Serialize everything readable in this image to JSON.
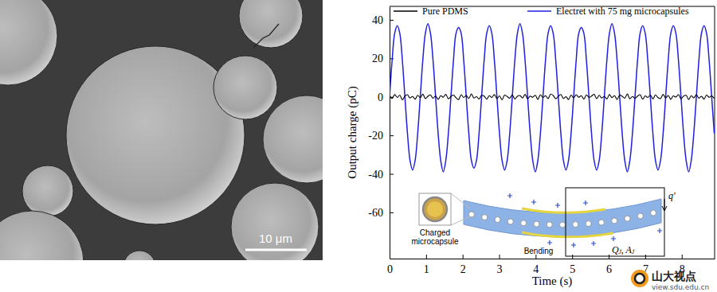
{
  "chart_data": {
    "type": "line",
    "xlabel": "Time (s)",
    "ylabel": "Output charge (pC)",
    "xlim": [
      0,
      8.9
    ],
    "xticks": [
      0,
      1,
      2,
      3,
      4,
      5,
      6,
      7,
      8
    ],
    "ylim": [
      -84,
      47
    ],
    "yticks": [
      -60,
      -40,
      -20,
      0,
      20,
      40
    ],
    "legend": "top",
    "x": [
      0,
      0.07,
      0.14,
      0.21,
      0.28,
      0.35,
      0.42,
      0.49,
      0.56,
      0.63,
      0.7,
      0.77,
      0.84,
      0.91,
      0.98,
      1.05,
      1.12,
      1.19,
      1.26,
      1.33,
      1.4,
      1.47,
      1.54,
      1.61,
      1.68,
      1.75,
      1.82,
      1.89,
      1.96,
      2.03,
      2.1,
      2.17,
      2.24,
      2.31,
      2.38,
      2.45,
      2.52,
      2.59,
      2.66,
      2.73,
      2.8,
      2.87,
      2.94,
      3.01,
      3.08,
      3.15,
      3.22,
      3.29,
      3.36,
      3.43,
      3.5,
      3.57,
      3.64,
      3.71,
      3.78,
      3.85,
      3.92,
      3.99,
      4.06,
      4.13,
      4.2,
      4.27,
      4.34,
      4.41,
      4.48,
      4.55,
      4.62,
      4.69,
      4.76,
      4.83,
      4.9,
      4.97,
      5.04,
      5.11,
      5.18,
      5.25,
      5.32,
      5.39,
      5.46,
      5.53,
      5.6,
      5.67,
      5.74,
      5.81,
      5.88,
      5.95,
      6.02,
      6.09,
      6.16,
      6.23,
      6.3,
      6.37,
      6.44,
      6.51,
      6.58,
      6.65,
      6.72,
      6.79,
      6.86,
      6.93,
      7.0,
      7.07,
      7.14,
      7.21,
      7.28,
      7.35,
      7.42,
      7.49,
      7.56,
      7.63,
      7.7,
      7.77,
      7.84,
      7.91,
      7.98,
      8.05,
      8.12,
      8.19,
      8.26,
      8.33,
      8.4,
      8.47,
      8.54,
      8.61,
      8.68,
      8.75,
      8.82,
      8.89
    ],
    "series": [
      {
        "name": "Electret with 75 mg microcapsules",
        "color": "#1f1fe0",
        "values": [
          0,
          19,
          33,
          37,
          33,
          19,
          0,
          -19,
          -33,
          -38,
          -33,
          -19,
          0,
          19,
          33,
          38,
          33,
          19,
          0,
          -19,
          -33,
          -39,
          -33,
          -19,
          0,
          19,
          33,
          36,
          33,
          19,
          0,
          -19,
          -33,
          -37,
          -33,
          -19,
          0,
          19,
          33,
          37,
          33,
          19,
          0,
          -19,
          -33,
          -38,
          -33,
          -19,
          0,
          19,
          33,
          38,
          33,
          19,
          0,
          -19,
          -33,
          -39,
          -33,
          -19,
          0,
          19,
          33,
          37,
          33,
          19,
          0,
          -19,
          -33,
          -38,
          -33,
          -19,
          0,
          19,
          33,
          36,
          33,
          19,
          0,
          -19,
          -33,
          -38,
          -33,
          -19,
          0,
          19,
          33,
          38,
          33,
          19,
          0,
          -19,
          -33,
          -39,
          -33,
          -19,
          0,
          19,
          33,
          37,
          33,
          19,
          0,
          -19,
          -33,
          -38,
          -33,
          -19,
          0,
          19,
          33,
          37,
          33,
          19,
          0,
          -19,
          -33,
          -39,
          -33,
          -19,
          0,
          19,
          33,
          37,
          33,
          19,
          0,
          -19
        ]
      },
      {
        "name": "Pure PDMS",
        "color": "#000000",
        "values": [
          0.5,
          -0.8,
          1.2,
          -0.3,
          0.9,
          -1.5,
          0.4,
          1.1,
          -0.6,
          0.2,
          -1.2,
          0.8,
          -0.4,
          1.4,
          -0.9,
          0.3,
          1.0,
          -0.7,
          0.5,
          -1.3,
          0.6,
          -0.2,
          1.3,
          -1.0,
          0.2,
          0.9,
          -0.5,
          -1.4,
          1.1,
          -0.3,
          0.7,
          -0.8,
          1.5,
          -0.6,
          0.1,
          -1.1,
          0.8,
          0.4,
          -1.2,
          0.6,
          -0.3,
          1.2,
          -0.9,
          0.5,
          -1.5,
          0.9,
          0.2,
          -0.7,
          1.0,
          -1.1,
          0.3,
          0.7,
          -0.6,
          1.3,
          -1.0,
          0.4,
          -0.2,
          0.8,
          -1.3,
          1.1,
          -0.4,
          0.6,
          -0.9,
          1.4,
          0.7,
          -1.0,
          0.3,
          1.2,
          -0.8,
          0.1,
          -1.4,
          0.9,
          -0.5,
          1.1,
          -0.2,
          0.6,
          -1.2,
          1.0,
          -0.3,
          0.4,
          1.3,
          -0.9,
          0.8,
          -0.6,
          0.2,
          -1.1,
          1.2,
          -0.4,
          0.6,
          -1.3,
          0.9,
          0.3,
          -0.7,
          1.5,
          -1.0,
          0.2,
          -0.8,
          0.4,
          1.1,
          -1.2,
          0.5,
          -0.3,
          0.9,
          -1.1,
          1.0,
          -0.4,
          -0.9,
          1.3,
          -0.6,
          0.7,
          -1.3,
          0.5,
          -0.1,
          1.2,
          -1.0,
          0.4,
          0.8,
          -1.4,
          0.6,
          -0.5,
          1.1,
          -0.7,
          0.3,
          -1.2,
          0.9,
          -0.2,
          0.5,
          -0.9
        ]
      }
    ],
    "legend_order": [
      "Pure PDMS",
      "Electret with 75 mg microcapsules"
    ],
    "annotations": {
      "capsule_label": [
        "Charged",
        "microcapsule"
      ],
      "bending": "Bending",
      "induced_charge": "q'",
      "electrode": "Qⱼ, Aⱼ"
    }
  },
  "image": {
    "scale_bar": "10 μm"
  },
  "watermark": {
    "name": "山大视点",
    "url": "view.sdu.edu.cn"
  }
}
